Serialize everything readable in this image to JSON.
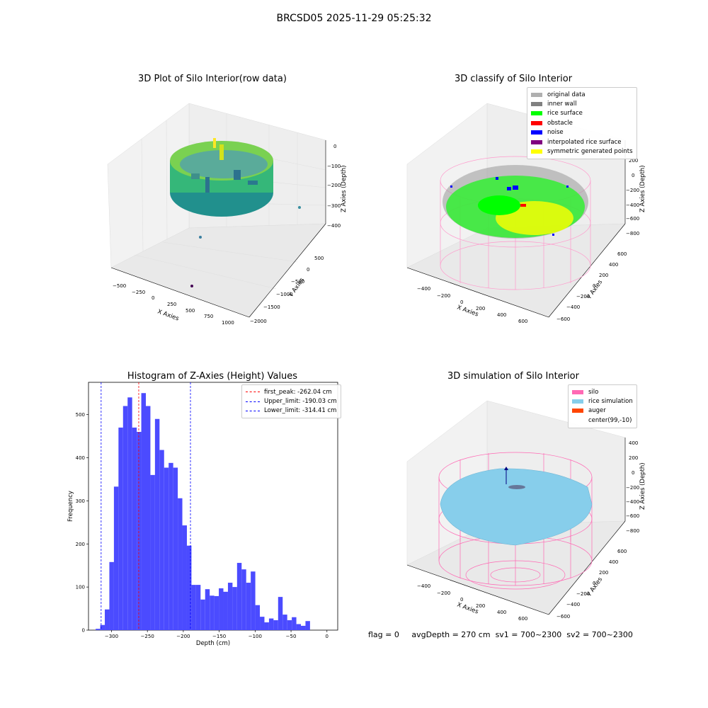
{
  "figure_title": "BRCSD05 2025-11-29 05:25:32",
  "status": {
    "flag": "flag = 0",
    "avg_depth": "avgDepth = 270 cm",
    "sv1": "sv1 = 700~2300",
    "sv2": "sv2 = 700~2300"
  },
  "colors": {
    "histogram_bar": "#4b4bff",
    "first_peak_line": "#ff0000",
    "limit_line": "#0000ff",
    "silo": "#ff69b4",
    "rice_simulation": "#87ceeb",
    "auger": "#ff4500"
  },
  "chart_data": [
    {
      "type": "scatter",
      "title": "3D Plot of Silo Interior(row data)",
      "xlabel": "X Axies",
      "ylabel": "Y Axies",
      "zlabel": "Z Axies (Depth)",
      "x_ticks": [
        "−500",
        "−250",
        "0",
        "250",
        "500",
        "750",
        "1000"
      ],
      "y_ticks": [
        "500",
        "0",
        "−500",
        "−1000",
        "−1500",
        "−2000"
      ],
      "z_ticks": [
        "0",
        "−100",
        "−200",
        "−300",
        "−400"
      ],
      "colormap": "viridis"
    },
    {
      "type": "scatter",
      "title": "3D classify of Silo Interior",
      "xlabel": "X Axies",
      "ylabel": "Y Axies",
      "zlabel": "Z Axies (Depth)",
      "x_ticks": [
        "−400",
        "−200",
        "0",
        "200",
        "400",
        "600"
      ],
      "y_ticks": [
        "600",
        "400",
        "200",
        "0",
        "−200",
        "−400",
        "−600"
      ],
      "z_ticks": [
        "200",
        "0",
        "−200",
        "−400",
        "−600",
        "−800"
      ],
      "legend_position": "top-right",
      "legend": [
        {
          "label": "original data",
          "color": "#b0b0b0"
        },
        {
          "label": "inner wall",
          "color": "#808080"
        },
        {
          "label": "rice surface",
          "color": "#00ff00"
        },
        {
          "label": "obstacle",
          "color": "#ff0000"
        },
        {
          "label": "noise",
          "color": "#0000ff"
        },
        {
          "label": "interpolated rice surface",
          "color": "#800080"
        },
        {
          "label": "symmetric generated points",
          "color": "#ffff00"
        }
      ]
    },
    {
      "type": "bar",
      "title": "Histogram of Z-Axies (Height) Values",
      "xlabel": "Depth (cm)",
      "ylabel": "Frequency",
      "xlim": [
        -332,
        15
      ],
      "ylim": [
        0,
        575
      ],
      "x_ticks": [
        -300,
        -250,
        -200,
        -150,
        -100,
        -50,
        0
      ],
      "x_tick_labels": [
        "−300",
        "−250",
        "−200",
        "−150",
        "−100",
        "−50",
        "0"
      ],
      "y_ticks": [
        0,
        100,
        200,
        300,
        400,
        500
      ],
      "bin_start": -322,
      "bin_width": 6.35,
      "values": [
        3,
        12,
        48,
        158,
        333,
        470,
        520,
        540,
        470,
        460,
        550,
        520,
        360,
        490,
        418,
        377,
        388,
        377,
        306,
        243,
        196,
        105,
        105,
        71,
        95,
        80,
        79,
        97,
        89,
        110,
        100,
        156,
        141,
        110,
        136,
        58,
        31,
        18,
        27,
        23,
        77,
        36,
        23,
        30,
        14,
        10,
        21
      ],
      "legend_position": "top-right",
      "legend": [
        {
          "label": "first_peak: -262.04 cm",
          "color": "#ff0000"
        },
        {
          "label": "Upper_limit: -190.03 cm",
          "color": "#0000ff"
        },
        {
          "label": "Lower_limit: -314.41 cm",
          "color": "#0000ff"
        }
      ],
      "vlines": [
        {
          "x": -262.04,
          "color": "#ff0000"
        },
        {
          "x": -190.03,
          "color": "#0000ff"
        },
        {
          "x": -314.41,
          "color": "#0000ff"
        }
      ]
    },
    {
      "type": "area",
      "title": "3D simulation of Silo Interior",
      "xlabel": "X Axies",
      "ylabel": "Y Axies",
      "zlabel": "Z Axies (Depth)",
      "x_ticks": [
        "−400",
        "−200",
        "0",
        "200",
        "400",
        "600"
      ],
      "y_ticks": [
        "600",
        "400",
        "200",
        "0",
        "−200",
        "−400",
        "−600"
      ],
      "z_ticks": [
        "400",
        "200",
        "0",
        "−200",
        "−400",
        "−600",
        "−800"
      ],
      "legend_position": "top-right",
      "legend": [
        {
          "label": "silo",
          "color": "#ff69b4"
        },
        {
          "label": "rice simulation",
          "color": "#87ceeb"
        },
        {
          "label": "auger",
          "color": "#ff4500"
        },
        {
          "label": "center(99,-10)",
          "color": ""
        }
      ]
    }
  ]
}
